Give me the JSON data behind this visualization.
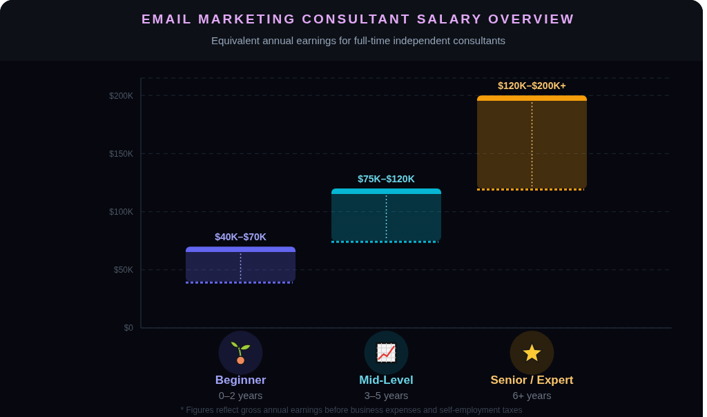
{
  "chart_data": {
    "type": "bar",
    "title": "EMAIL MARKETING CONSULTANT SALARY OVERVIEW",
    "subtitle": "Equivalent annual earnings for full-time independent consultants",
    "categories": [
      "Beginner\n0–2 years",
      "Mid-Level\n3–5 years",
      "Senior / Expert\n6+ years"
    ],
    "base": [
      40,
      75,
      120
    ],
    "values": [
      30,
      45,
      80
    ],
    "colors": [
      "#6366f1",
      "#06b6d4",
      "#f59e0b"
    ],
    "ylim": [
      0,
      215
    ],
    "yticks": [
      {
        "value": 0,
        "label": "$0"
      },
      {
        "value": 50,
        "label": "$50K"
      },
      {
        "value": 100,
        "label": "$100K"
      },
      {
        "value": 150,
        "label": "$150K"
      },
      {
        "value": 200,
        "label": "$200K"
      }
    ],
    "grid": "y",
    "annotations": [
      {
        "text": "$40K–$70K",
        "x": "Beginner\n0–2 years",
        "y": 70
      },
      {
        "text": "$75K–$120K",
        "x": "Mid-Level\n3–5 years",
        "y": 120
      },
      {
        "text": "$120K–$200K+",
        "x": "Senior / Expert\n6+ years",
        "y": 200
      },
      "* Figures reflect gross annual earnings before business expenses and self-employment taxes"
    ]
  }
}
